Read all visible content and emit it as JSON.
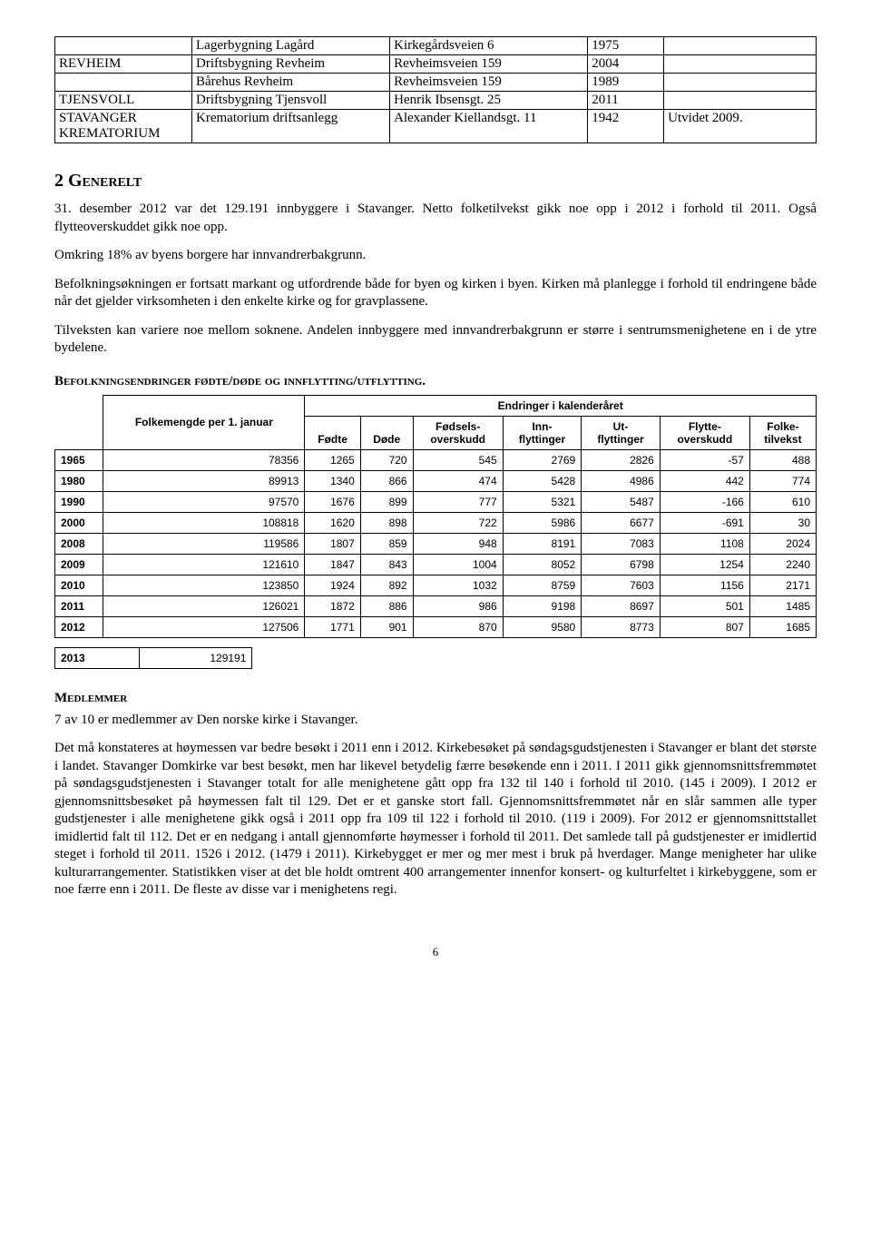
{
  "table1": {
    "rows": [
      [
        "",
        "Lagerbygning Lagård",
        "Kirkegårdsveien 6",
        "1975",
        ""
      ],
      [
        "REVHEIM",
        "Driftsbygning Revheim",
        "Revheimsveien 159",
        "2004",
        ""
      ],
      [
        "",
        "Bårehus Revheim",
        "Revheimsveien 159",
        "1989",
        ""
      ],
      [
        "TJENSVOLL",
        "Driftsbygning Tjensvoll",
        "Henrik Ibsensgt. 25",
        "2011",
        ""
      ],
      [
        "STAVANGER KREMATORIUM",
        "Krematorium driftsanlegg",
        "Alexander Kiellandsgt. 11",
        "1942",
        "Utvidet 2009."
      ]
    ],
    "col_widths": [
      "18%",
      "26%",
      "26%",
      "10%",
      "20%"
    ]
  },
  "section_title": {
    "num": "2",
    "text": "Generelt"
  },
  "paragraphs": {
    "p1": "31. desember 2012 var det 129.191 innbyggere i Stavanger. Netto folketilvekst gikk noe opp i 2012 i forhold til 2011. Også flytteoverskuddet gikk noe opp.",
    "p2": "Omkring 18% av byens borgere har innvandrerbakgrunn.",
    "p3": "Befolkningsøkningen er fortsatt markant og utfordrende både for byen og kirken i byen. Kirken må planlegge i forhold til endringene både når det gjelder virksomheten i den enkelte kirke og for gravplassene.",
    "p4": "Tilveksten kan variere noe mellom soknene. Andelen innbyggere med innvandrerbakgrunn er større i sentrumsmenighetene en i de ytre bydelene."
  },
  "subhead1": "Befolkningsendringer fødte/døde og innflytting/utflytting.",
  "table2": {
    "top_left": "Folkemengde per 1. januar",
    "span_header": "Endringer i kalenderåret",
    "cols": [
      "Fødte",
      "Døde",
      "Fødsels-\noverskudd",
      "Inn-\nflyttinger",
      "Ut-\nflyttinger",
      "Flytte-\noverskudd",
      "Folke-\ntilvekst"
    ],
    "rows": [
      {
        "year": "1965",
        "pop": "78356",
        "v": [
          "1265",
          "720",
          "545",
          "2769",
          "2826",
          "-57",
          "488"
        ]
      },
      {
        "year": "1980",
        "pop": "89913",
        "v": [
          "1340",
          "866",
          "474",
          "5428",
          "4986",
          "442",
          "774"
        ]
      },
      {
        "year": "1990",
        "pop": "97570",
        "v": [
          "1676",
          "899",
          "777",
          "5321",
          "5487",
          "-166",
          "610"
        ]
      },
      {
        "year": "2000",
        "pop": "108818",
        "v": [
          "1620",
          "898",
          "722",
          "5986",
          "6677",
          "-691",
          "30"
        ]
      },
      {
        "year": "2008",
        "pop": "119586",
        "v": [
          "1807",
          "859",
          "948",
          "8191",
          "7083",
          "1108",
          "2024"
        ]
      },
      {
        "year": "2009",
        "pop": "121610",
        "v": [
          "1847",
          "843",
          "1004",
          "8052",
          "6798",
          "1254",
          "2240"
        ]
      },
      {
        "year": "2010",
        "pop": "123850",
        "v": [
          "1924",
          "892",
          "1032",
          "8759",
          "7603",
          "1156",
          "2171"
        ]
      },
      {
        "year": "2011",
        "pop": "126021",
        "v": [
          "1872",
          "886",
          "986",
          "9198",
          "8697",
          "501",
          "1485"
        ]
      },
      {
        "year": "2012",
        "pop": "127506",
        "v": [
          "1771",
          "901",
          "870",
          "9580",
          "8773",
          "807",
          "1685"
        ]
      }
    ]
  },
  "table3": {
    "year": "2013",
    "pop": "129191"
  },
  "subhead2": "Medlemmer",
  "p5": "7 av 10 er medlemmer av Den norske kirke i Stavanger.",
  "p6": "Det må konstateres at høymessen var bedre besøkt i 2011 enn i 2012.  Kirkebesøket på søndagsgudstjenesten i Stavanger er blant det største i landet. Stavanger Domkirke var best besøkt, men har likevel betydelig færre besøkende enn i 2011.  I 2011 gikk gjennomsnittsfremmøtet på søndagsgudstjenesten i Stavanger totalt for alle menighetene gått opp fra 132 til 140 i forhold til 2010. (145 i 2009). I 2012 er gjennomsnittsbesøket på høymessen falt til 129.  Det er et ganske stort fall. Gjennomsnittsfremmøtet når en slår sammen alle typer gudstjenester i alle menighetene gikk også i 2011 opp fra 109 til 122  i forhold til 2010. (119 i 2009).  For 2012 er gjennomsnittstallet imidlertid falt til 112.  Det er en nedgang i antall gjennomførte høymesser i forhold til 2011. Det samlede tall på gudstjenester er imidlertid steget i forhold til 2011. 1526 i 2012. (1479 i 2011). Kirkebygget er mer og mer mest i bruk på hverdager.  Mange menigheter har ulike kulturarrangementer. Statistikken viser at det ble holdt omtrent 400 arrangementer innenfor konsert- og kulturfeltet i kirkebyggene, som er noe færre enn i 2011. De fleste av disse var i menighetens regi.",
  "page_number": "6"
}
